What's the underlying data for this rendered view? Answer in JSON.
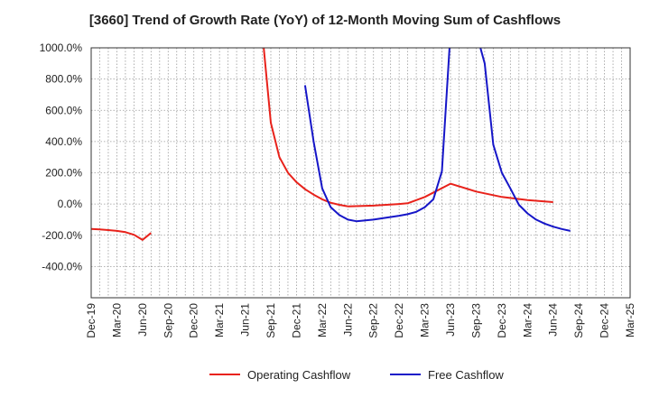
{
  "chart_data": {
    "type": "line",
    "title": "[3660]  Trend of Growth Rate (YoY) of 12-Month Moving Sum of Cashflows",
    "xlabel": "",
    "ylabel": "",
    "x_range": [
      "2019-12",
      "2025-03"
    ],
    "ylim": [
      -600,
      1000
    ],
    "y_ticks": [
      1000,
      800,
      600,
      400,
      200,
      0,
      -200,
      -400
    ],
    "y_tick_labels": [
      "1000.0%",
      "800.0%",
      "600.0%",
      "400.0%",
      "200.0%",
      "0.0%",
      "-200.0%",
      "-400.0%"
    ],
    "x_tick_labels": [
      "Dec-19",
      "Mar-20",
      "Jun-20",
      "Sep-20",
      "Dec-20",
      "Mar-21",
      "Jun-21",
      "Sep-21",
      "Dec-21",
      "Mar-22",
      "Jun-22",
      "Sep-22",
      "Dec-22",
      "Mar-23",
      "Jun-23",
      "Sep-23",
      "Dec-23",
      "Mar-24",
      "Jun-24",
      "Sep-24",
      "Dec-24",
      "Mar-25"
    ],
    "grid": true,
    "legend_position": "bottom",
    "series": [
      {
        "name": "Operating Cashflow",
        "color": "#e8221b",
        "points": [
          [
            "2019-12",
            -160
          ],
          [
            "2020-01",
            -163
          ],
          [
            "2020-02",
            -167
          ],
          [
            "2020-03",
            -172
          ],
          [
            "2020-04",
            -180
          ],
          [
            "2020-05",
            -197
          ],
          [
            "2020-06",
            -230
          ],
          [
            "2020-07",
            -185
          ],
          null,
          [
            "2021-08",
            1100
          ],
          [
            "2021-09",
            520
          ],
          [
            "2021-10",
            300
          ],
          [
            "2021-11",
            200
          ],
          [
            "2021-12",
            140
          ],
          [
            "2022-01",
            95
          ],
          [
            "2022-02",
            60
          ],
          [
            "2022-03",
            30
          ],
          [
            "2022-04",
            8
          ],
          [
            "2022-05",
            -5
          ],
          [
            "2022-06",
            -15
          ],
          [
            "2022-09",
            -10
          ],
          [
            "2022-12",
            0
          ],
          [
            "2023-01",
            5
          ],
          [
            "2023-03",
            45
          ],
          [
            "2023-06",
            130
          ],
          [
            "2023-09",
            80
          ],
          [
            "2023-12",
            45
          ],
          [
            "2024-03",
            25
          ],
          [
            "2024-06",
            12
          ]
        ]
      },
      {
        "name": "Free Cashflow",
        "color": "#1616c8",
        "points": [
          [
            "2022-01",
            760
          ],
          [
            "2022-02",
            400
          ],
          [
            "2022-03",
            100
          ],
          [
            "2022-04",
            -20
          ],
          [
            "2022-05",
            -70
          ],
          [
            "2022-06",
            -100
          ],
          [
            "2022-07",
            -110
          ],
          [
            "2022-09",
            -100
          ],
          [
            "2022-12",
            -75
          ],
          [
            "2023-01",
            -65
          ],
          [
            "2023-02",
            -50
          ],
          [
            "2023-03",
            -20
          ],
          [
            "2023-04",
            30
          ],
          [
            "2023-05",
            210
          ],
          [
            "2023-06",
            1100
          ],
          null,
          [
            "2023-09",
            1100
          ],
          [
            "2023-10",
            900
          ],
          [
            "2023-11",
            380
          ],
          [
            "2023-12",
            200
          ],
          [
            "2024-01",
            100
          ],
          [
            "2024-02",
            -5
          ],
          [
            "2024-03",
            -60
          ],
          [
            "2024-04",
            -100
          ],
          [
            "2024-05",
            -125
          ],
          [
            "2024-06",
            -145
          ],
          [
            "2024-07",
            -160
          ],
          [
            "2024-08",
            -172
          ]
        ]
      }
    ]
  }
}
